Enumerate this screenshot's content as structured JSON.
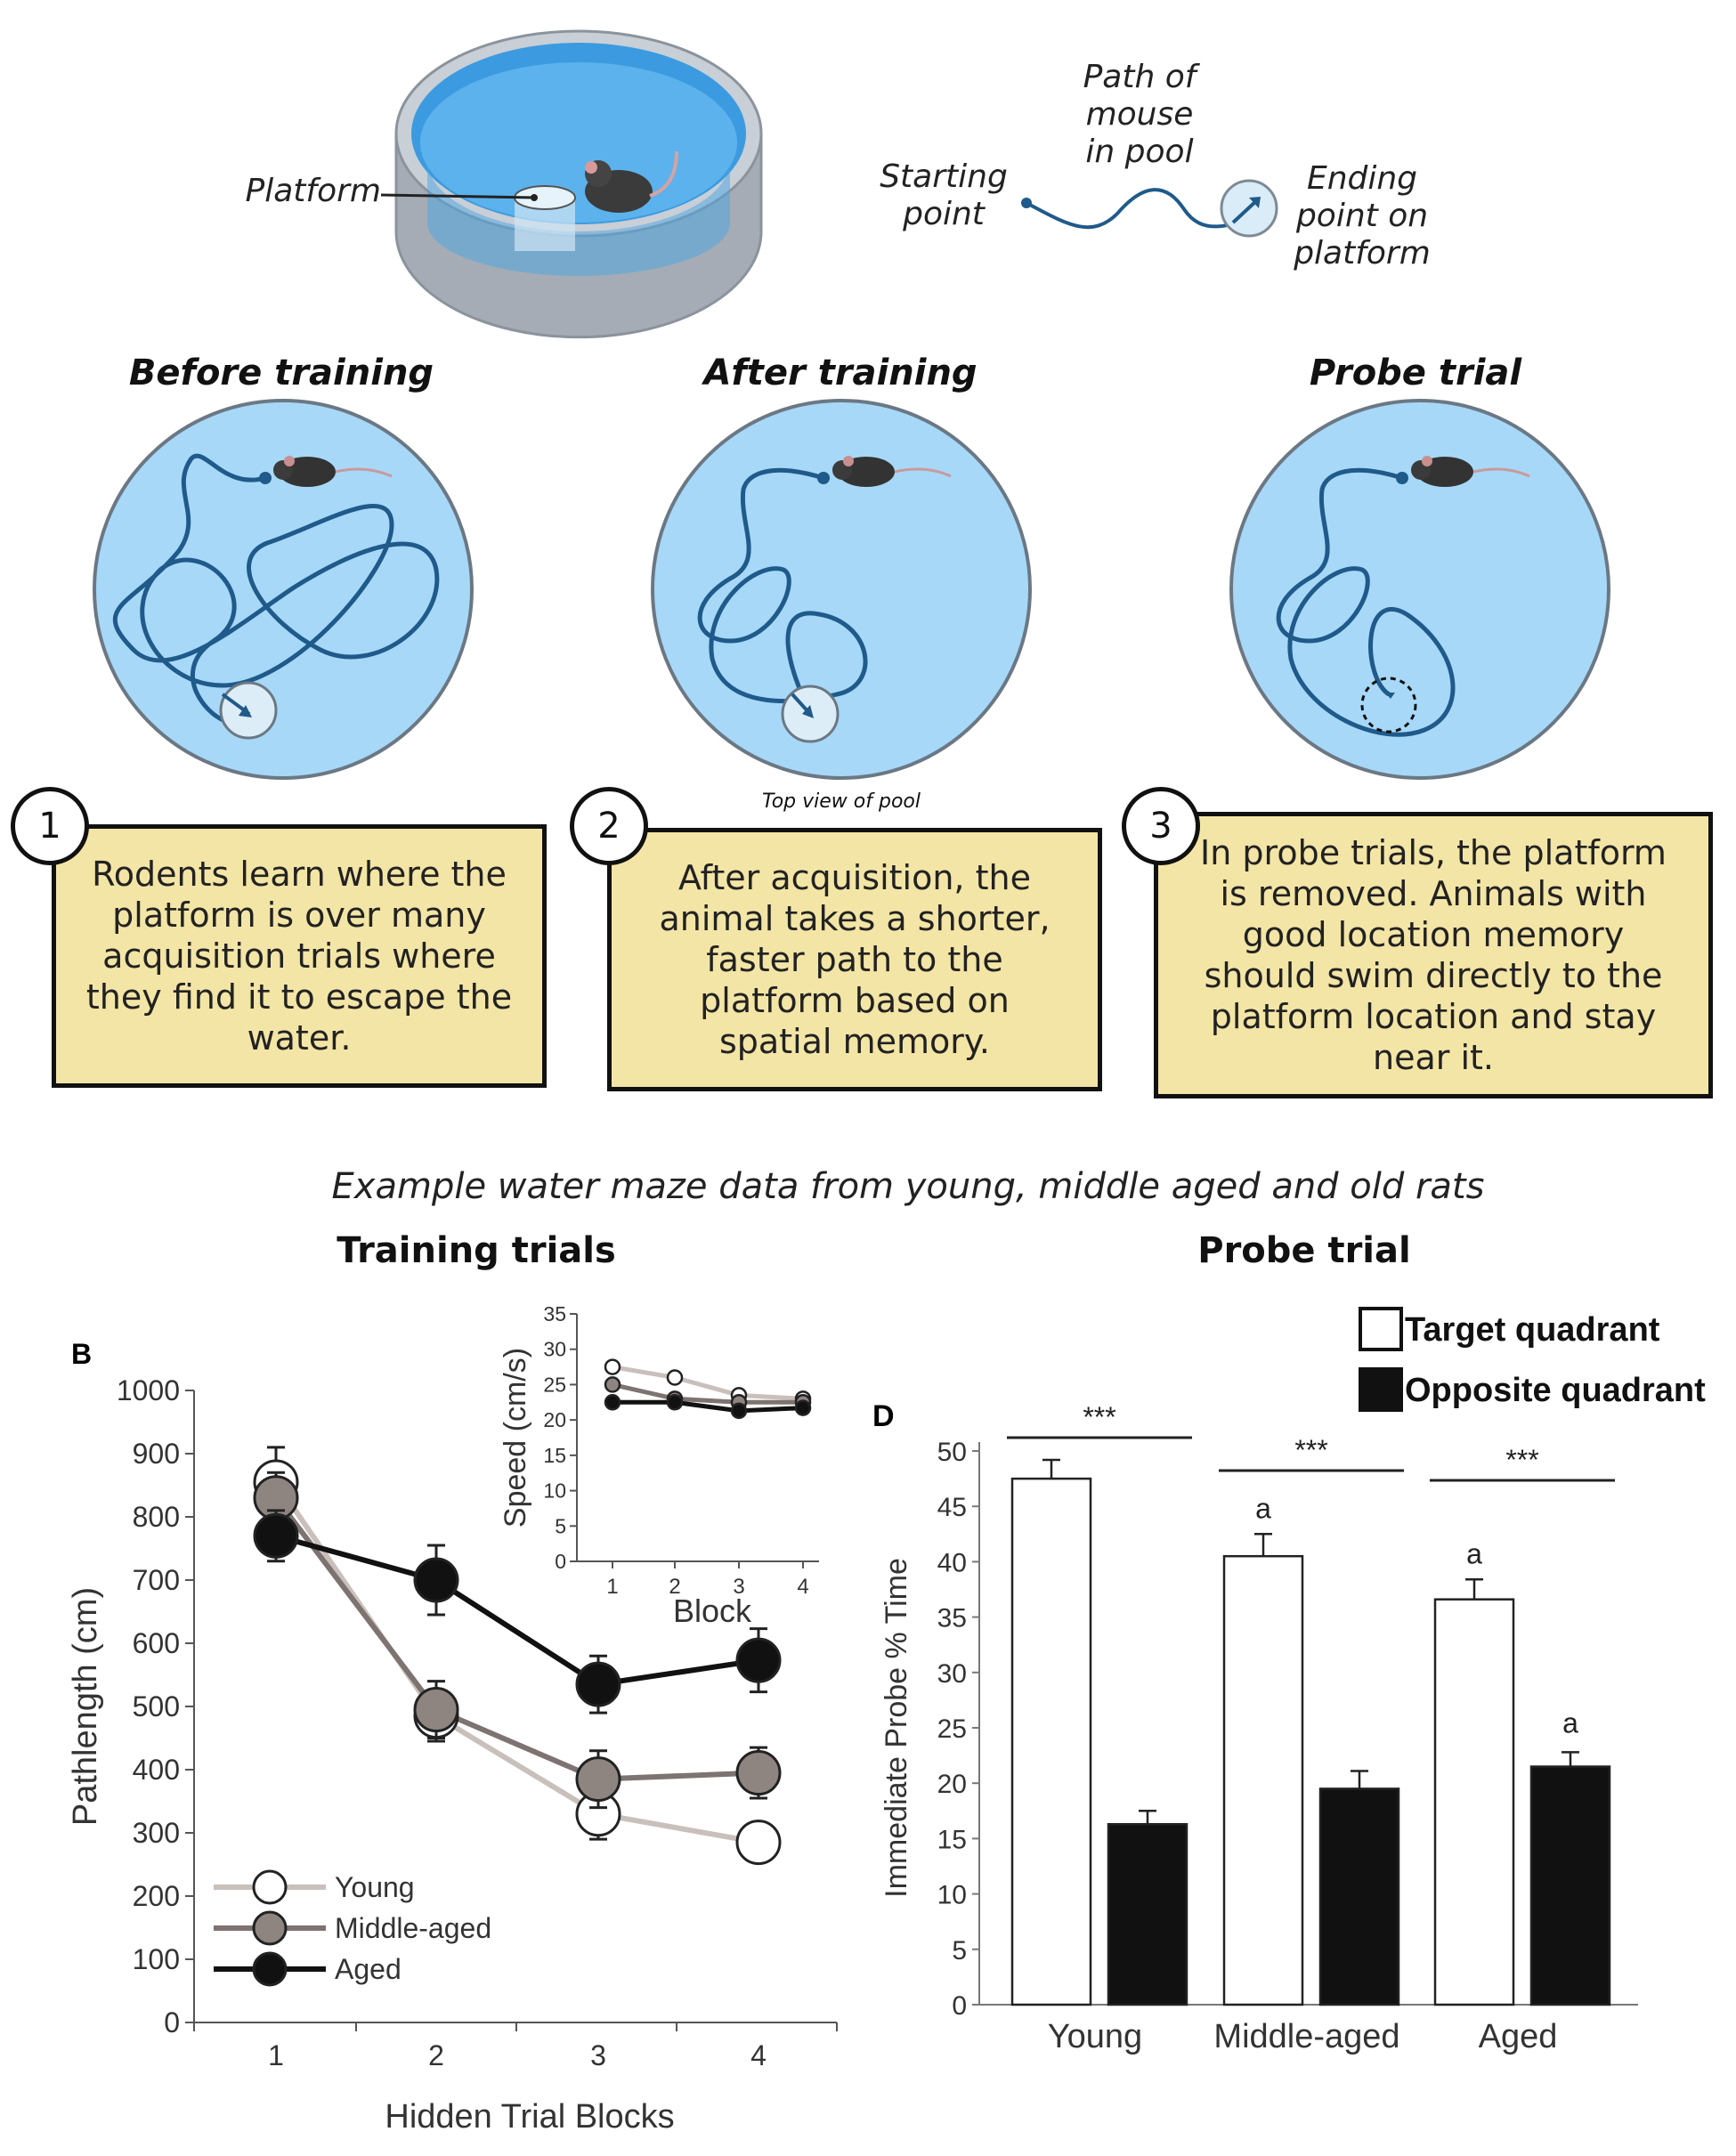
{
  "top": {
    "platform_label": "Platform",
    "path_label": [
      "Path of",
      "mouse",
      "in pool"
    ],
    "start_label": [
      "Starting",
      "point"
    ],
    "end_label": [
      "Ending",
      "point on",
      "platform"
    ]
  },
  "panels": [
    {
      "title": "Before training",
      "number": "1",
      "text": "Rodents learn where the platform is over many acquisition trials where they find it to escape the water."
    },
    {
      "title": "After training",
      "number": "2",
      "text": "After acquisition, the animal takes a shorter, faster path to the platform based on spatial memory."
    },
    {
      "title": "Probe trial",
      "number": "3",
      "text": "In probe trials, the platform is removed. Animals with good location memory should swim directly to the platform location and stay near it."
    }
  ],
  "top_view_caption": "Top view of pool",
  "data_caption": "Example water maze data from young, middle aged and old rats",
  "training_title": "Training trials",
  "probe_title": "Probe trial",
  "colors": {
    "pool_blue": "#9fd4f7",
    "path_blue": "#1f5a8a",
    "box_fill": "#f3e5a5",
    "young": "#c9c0bc",
    "middle": "#7d7370",
    "aged": "#111111"
  },
  "chart_data": [
    {
      "type": "line",
      "panel_letter": "B",
      "xlabel": "Hidden Trial Blocks",
      "ylabel": "Pathlength (cm)",
      "x": [
        1,
        2,
        3,
        4
      ],
      "ylim": [
        0,
        1000
      ],
      "yticks": [
        0,
        100,
        200,
        300,
        400,
        500,
        600,
        700,
        800,
        900,
        1000
      ],
      "series": [
        {
          "name": "Young",
          "values": [
            855,
            485,
            330,
            285
          ],
          "errors": [
            55,
            40,
            40,
            30
          ]
        },
        {
          "name": "Middle-aged",
          "values": [
            830,
            495,
            385,
            395
          ],
          "errors": [
            40,
            45,
            45,
            40
          ]
        },
        {
          "name": "Aged",
          "values": [
            770,
            700,
            535,
            573
          ],
          "errors": [
            40,
            55,
            45,
            50
          ]
        }
      ],
      "legend": "bottom-left",
      "inset": {
        "xlabel": "Block",
        "ylabel": "Speed (cm/s)",
        "x": [
          1,
          2,
          3,
          4
        ],
        "ylim": [
          0,
          35
        ],
        "yticks": [
          0,
          5,
          10,
          15,
          20,
          25,
          30,
          35
        ],
        "series": [
          {
            "name": "Young",
            "values": [
              27.5,
              26,
              23.5,
              23
            ]
          },
          {
            "name": "Middle-aged",
            "values": [
              25,
              23,
              22.5,
              22.5
            ]
          },
          {
            "name": "Aged",
            "values": [
              22.5,
              22.5,
              21.3,
              21.7
            ]
          }
        ]
      }
    },
    {
      "type": "bar",
      "panel_letter": "D",
      "ylabel": "Immediate Probe % Time",
      "categories": [
        "Young",
        "Middle-aged",
        "Aged"
      ],
      "ylim": [
        0,
        50
      ],
      "yticks": [
        0,
        5,
        10,
        15,
        20,
        25,
        30,
        35,
        40,
        45,
        50
      ],
      "series": [
        {
          "name": "Target quadrant",
          "values": [
            47.5,
            40.5,
            36.6
          ],
          "errors": [
            1.7,
            2.0,
            1.8
          ]
        },
        {
          "name": "Opposite quadrant",
          "values": [
            16.3,
            19.5,
            21.5
          ],
          "errors": [
            1.2,
            1.6,
            1.3
          ]
        }
      ],
      "significance": "***",
      "annotations": [
        "a",
        "a",
        "a"
      ],
      "legend": "top-right"
    }
  ]
}
